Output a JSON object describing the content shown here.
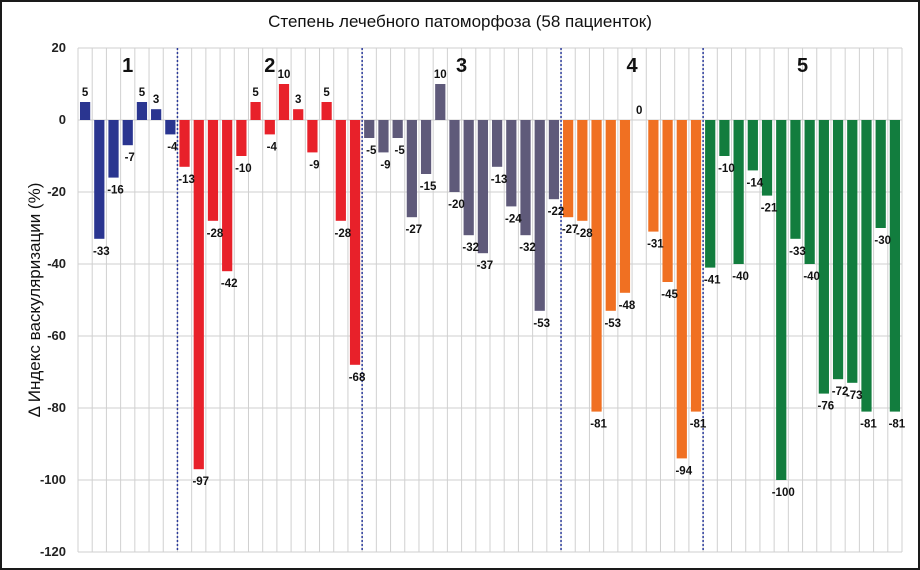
{
  "chart_data": {
    "type": "bar",
    "title": "Степень лечебного патоморфоза (58 пациенток)",
    "xlabel": "",
    "ylabel": "Δ Индекс васкуляризации (%)",
    "ylim": [
      -120,
      20
    ],
    "yticks": [
      20,
      0,
      -20,
      -40,
      -60,
      -80,
      -100,
      -120
    ],
    "grid": true,
    "legend": "none",
    "groups": [
      {
        "name": "1",
        "color": "#2a3590",
        "values": [
          5,
          -33,
          -16,
          -7,
          5,
          3,
          -4
        ]
      },
      {
        "name": "2",
        "color": "#e8212a",
        "values": [
          -13,
          -97,
          -28,
          -42,
          -10,
          5,
          -4,
          10,
          3,
          -9,
          5,
          -28,
          -68
        ]
      },
      {
        "name": "3",
        "color": "#5f5a7a",
        "values": [
          -5,
          -9,
          -5,
          -27,
          -15,
          10,
          -20,
          -32,
          -37,
          -13,
          -24,
          -32,
          -53,
          -22
        ]
      },
      {
        "name": "4",
        "color": "#f07022",
        "values": [
          -27,
          -28,
          -81,
          -53,
          -48,
          0,
          -31,
          -45,
          -94,
          -81
        ]
      },
      {
        "name": "5",
        "color": "#127d3e",
        "values": [
          -41,
          -10,
          -40,
          -14,
          -21,
          -100,
          -33,
          -40,
          -76,
          -72,
          -73,
          -81,
          -30,
          -81
        ]
      }
    ],
    "separator_color": "#2b3a9a"
  }
}
